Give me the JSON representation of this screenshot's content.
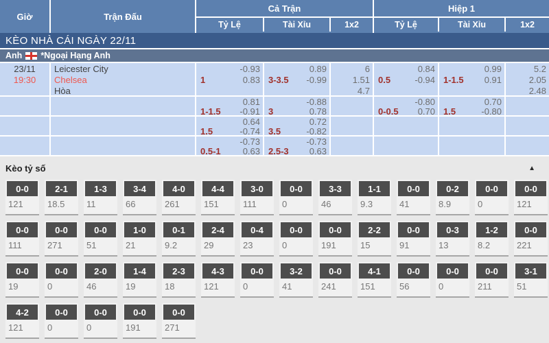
{
  "colors": {
    "header_blue": "#5c80af",
    "banner_navy": "#3a5b8b",
    "league_gray_blue": "#5e7391",
    "row_light_blue": "#c6d7f2",
    "handicap_red": "#a1312b",
    "accent_red": "#ef574e",
    "score_box_dark": "#4d4d4d",
    "section_gray": "#e8e8e8"
  },
  "header": {
    "col_time": "Giờ",
    "col_match": "Trận Đấu",
    "group_full": "Cả Trận",
    "group_half": "Hiệp 1",
    "sub_odds": "Tỷ Lệ",
    "sub_over_under": "Tài Xỉu",
    "sub_1x2": "1x2"
  },
  "banner": {
    "title": "KÈO NHÀ CÁI NGÀY 22/11"
  },
  "league": {
    "country": "Anh",
    "flag": "england-flag",
    "name": "*Ngoại Hạng Anh"
  },
  "odds_rows": [
    {
      "date": "23/11",
      "time": "19:30",
      "home": "Leicester City",
      "away": "Chelsea",
      "draw": "Hòa",
      "ft_hdp": {
        "hdp": "1",
        "v1": "-0.93",
        "v2": "0.83"
      },
      "ft_ou": {
        "hdp": "3-3.5",
        "v1": "0.89",
        "v2": "-0.99"
      },
      "ft_1x2": {
        "v1": "6",
        "v2": "1.51",
        "v3": "4.7"
      },
      "h1_hdp": {
        "hdp": "0.5",
        "v1": "0.84",
        "v2": "-0.94"
      },
      "h1_ou": {
        "hdp": "1-1.5",
        "v1": "0.99",
        "v2": "0.91"
      },
      "h1_1x2": {
        "v1": "5.2",
        "v2": "2.05",
        "v3": "2.48"
      }
    },
    {
      "ft_hdp": {
        "hdp": "1-1.5",
        "v1": "0.81",
        "v2": "-0.91"
      },
      "ft_ou": {
        "hdp": "3",
        "v1": "-0.88",
        "v2": "0.78"
      },
      "h1_hdp": {
        "hdp": "0-0.5",
        "v1": "-0.80",
        "v2": "0.70"
      },
      "h1_ou": {
        "hdp": "1.5",
        "v1": "0.70",
        "v2": "-0.80"
      }
    },
    {
      "ft_hdp": {
        "hdp": "1.5",
        "v1": "0.64",
        "v2": "-0.74"
      },
      "ft_ou": {
        "hdp": "3.5",
        "v1": "0.72",
        "v2": "-0.82"
      }
    },
    {
      "ft_hdp": {
        "hdp": "0.5-1",
        "v1": "-0.73",
        "v2": "0.63"
      },
      "ft_ou": {
        "hdp": "2.5-3",
        "v1": "-0.73",
        "v2": "0.63"
      }
    }
  ],
  "score_section": {
    "title": "Kèo tỷ số",
    "collapse_icon": "▲"
  },
  "score_rows": [
    [
      {
        "score": "0-0",
        "odds": "121"
      },
      {
        "score": "2-1",
        "odds": "18.5"
      },
      {
        "score": "1-3",
        "odds": "11"
      },
      {
        "score": "3-4",
        "odds": "66"
      },
      {
        "score": "4-0",
        "odds": "261"
      },
      {
        "score": "4-4",
        "odds": "151"
      },
      {
        "score": "3-0",
        "odds": "111"
      },
      {
        "score": "0-0",
        "odds": "0"
      },
      {
        "score": "3-3",
        "odds": "46"
      },
      {
        "score": "1-1",
        "odds": "9.3"
      },
      {
        "score": "0-0",
        "odds": "41"
      },
      {
        "score": "0-2",
        "odds": "8.9"
      },
      {
        "score": "0-0",
        "odds": "0"
      },
      {
        "score": "0-0",
        "odds": "121"
      }
    ],
    [
      {
        "score": "0-0",
        "odds": "111"
      },
      {
        "score": "0-0",
        "odds": "271"
      },
      {
        "score": "0-0",
        "odds": "51"
      },
      {
        "score": "1-0",
        "odds": "21"
      },
      {
        "score": "0-1",
        "odds": "9.2"
      },
      {
        "score": "2-4",
        "odds": "29"
      },
      {
        "score": "0-4",
        "odds": "23"
      },
      {
        "score": "0-0",
        "odds": "0"
      },
      {
        "score": "0-0",
        "odds": "191"
      },
      {
        "score": "2-2",
        "odds": "15"
      },
      {
        "score": "0-0",
        "odds": "91"
      },
      {
        "score": "0-3",
        "odds": "13"
      },
      {
        "score": "1-2",
        "odds": "8.2"
      },
      {
        "score": "0-0",
        "odds": "221"
      }
    ],
    [
      {
        "score": "0-0",
        "odds": "19"
      },
      {
        "score": "0-0",
        "odds": "0"
      },
      {
        "score": "2-0",
        "odds": "46"
      },
      {
        "score": "1-4",
        "odds": "19"
      },
      {
        "score": "2-3",
        "odds": "18"
      },
      {
        "score": "4-3",
        "odds": "121"
      },
      {
        "score": "0-0",
        "odds": "0"
      },
      {
        "score": "3-2",
        "odds": "41"
      },
      {
        "score": "0-0",
        "odds": "241"
      },
      {
        "score": "4-1",
        "odds": "151"
      },
      {
        "score": "0-0",
        "odds": "56"
      },
      {
        "score": "0-0",
        "odds": "0"
      },
      {
        "score": "0-0",
        "odds": "211"
      },
      {
        "score": "3-1",
        "odds": "51"
      }
    ],
    [
      {
        "score": "4-2",
        "odds": "121"
      },
      {
        "score": "0-0",
        "odds": "0"
      },
      {
        "score": "0-0",
        "odds": "0"
      },
      {
        "score": "0-0",
        "odds": "191"
      },
      {
        "score": "0-0",
        "odds": "271"
      }
    ]
  ]
}
